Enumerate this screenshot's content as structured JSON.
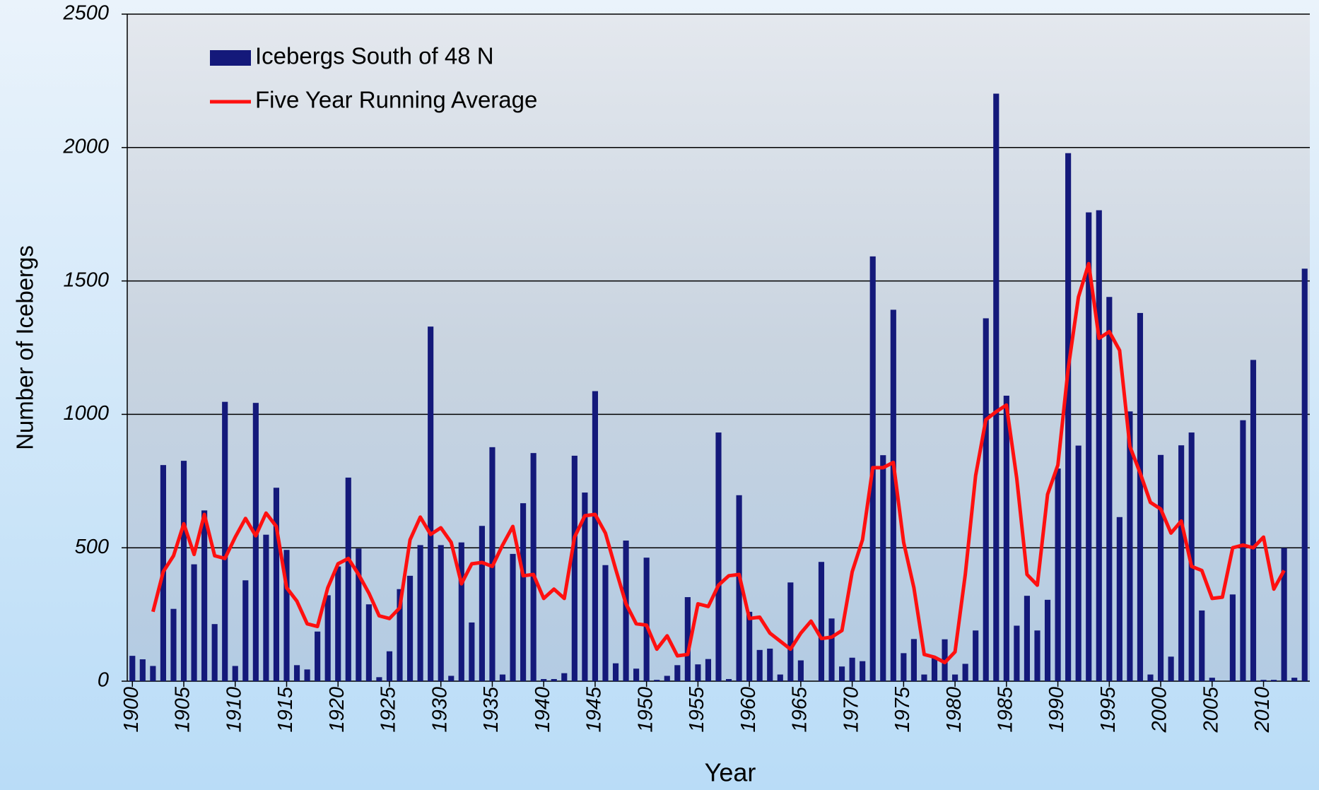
{
  "chart_data": {
    "type": "bar",
    "xlabel": "Year",
    "ylabel": "Number of Icebergs",
    "x": [
      1900,
      1901,
      1902,
      1903,
      1904,
      1905,
      1906,
      1907,
      1908,
      1909,
      1910,
      1911,
      1912,
      1913,
      1914,
      1915,
      1916,
      1917,
      1918,
      1919,
      1920,
      1921,
      1922,
      1923,
      1924,
      1925,
      1926,
      1927,
      1928,
      1929,
      1930,
      1931,
      1932,
      1933,
      1934,
      1935,
      1936,
      1937,
      1938,
      1939,
      1940,
      1941,
      1942,
      1943,
      1944,
      1945,
      1946,
      1947,
      1948,
      1949,
      1950,
      1951,
      1952,
      1953,
      1954,
      1955,
      1956,
      1957,
      1958,
      1959,
      1960,
      1961,
      1962,
      1963,
      1964,
      1965,
      1966,
      1967,
      1968,
      1969,
      1970,
      1971,
      1972,
      1973,
      1974,
      1975,
      1976,
      1977,
      1978,
      1979,
      1980,
      1981,
      1982,
      1983,
      1984,
      1985,
      1986,
      1987,
      1988,
      1989,
      1990,
      1991,
      1992,
      1993,
      1994,
      1995,
      1996,
      1997,
      1998,
      1999,
      2000,
      2001,
      2002,
      2003,
      2004,
      2005,
      2006,
      2007,
      2008,
      2009,
      2010,
      2011,
      2012,
      2013,
      2014
    ],
    "series": [
      {
        "name": "Icebergs South of 48 N",
        "type": "bar",
        "color": "#14197a",
        "values": [
          95,
          82,
          57,
          810,
          271,
          826,
          438,
          640,
          214,
          1047,
          57,
          378,
          1043,
          549,
          725,
          492,
          60,
          44,
          186,
          322,
          430,
          763,
          497,
          288,
          15,
          112,
          345,
          395,
          510,
          1329,
          510,
          20,
          520,
          220,
          582,
          877,
          25,
          477,
          667,
          855,
          8,
          8,
          30,
          845,
          707,
          1087,
          435,
          67,
          527,
          47,
          463,
          5,
          20,
          60,
          315,
          63,
          83,
          932,
          8,
          697,
          260,
          117,
          122,
          25,
          370,
          78,
          0,
          447,
          235,
          55,
          88,
          75,
          1592,
          847,
          1392,
          105,
          158,
          25,
          90,
          157,
          25,
          65,
          190,
          1360,
          2202,
          1070,
          208,
          320,
          190,
          305,
          797,
          1979,
          883,
          1757,
          1765,
          1440,
          615,
          1011,
          1380,
          25,
          848,
          92,
          884,
          932,
          265,
          13,
          0,
          325,
          978,
          1204,
          5,
          5,
          499,
          13,
          1546
        ]
      },
      {
        "name": "Five Year Running Average",
        "type": "line",
        "color": "#ff1010",
        "values": [
          null,
          null,
          260,
          410,
          470,
          590,
          475,
          625,
          470,
          460,
          540,
          610,
          545,
          630,
          580,
          350,
          300,
          215,
          205,
          350,
          440,
          460,
          400,
          330,
          245,
          235,
          275,
          530,
          615,
          550,
          575,
          520,
          365,
          440,
          445,
          430,
          510,
          580,
          395,
          400,
          310,
          345,
          310,
          540,
          620,
          625,
          555,
          420,
          290,
          215,
          210,
          120,
          170,
          95,
          100,
          290,
          280,
          360,
          395,
          400,
          235,
          240,
          180,
          150,
          120,
          180,
          225,
          160,
          165,
          190,
          410,
          530,
          800,
          800,
          820,
          520,
          350,
          100,
          90,
          70,
          110,
          400,
          770,
          980,
          1010,
          1035,
          760,
          400,
          360,
          700,
          810,
          1170,
          1440,
          1565,
          1285,
          1310,
          1240,
          880,
          780,
          670,
          645,
          555,
          600,
          430,
          415,
          310,
          315,
          500,
          510,
          500,
          540,
          345,
          415,
          null,
          null
        ]
      }
    ],
    "xlim": [
      1899.5,
      2014.5
    ],
    "xticks": [
      1900,
      1905,
      1910,
      1915,
      1920,
      1925,
      1930,
      1935,
      1940,
      1945,
      1950,
      1955,
      1960,
      1965,
      1970,
      1975,
      1980,
      1985,
      1990,
      1995,
      2000,
      2005,
      2010
    ],
    "ylim": [
      0,
      2500
    ],
    "yticks": [
      0,
      500,
      1000,
      1500,
      2000,
      2500
    ],
    "grid": true,
    "legend": "upper left"
  }
}
